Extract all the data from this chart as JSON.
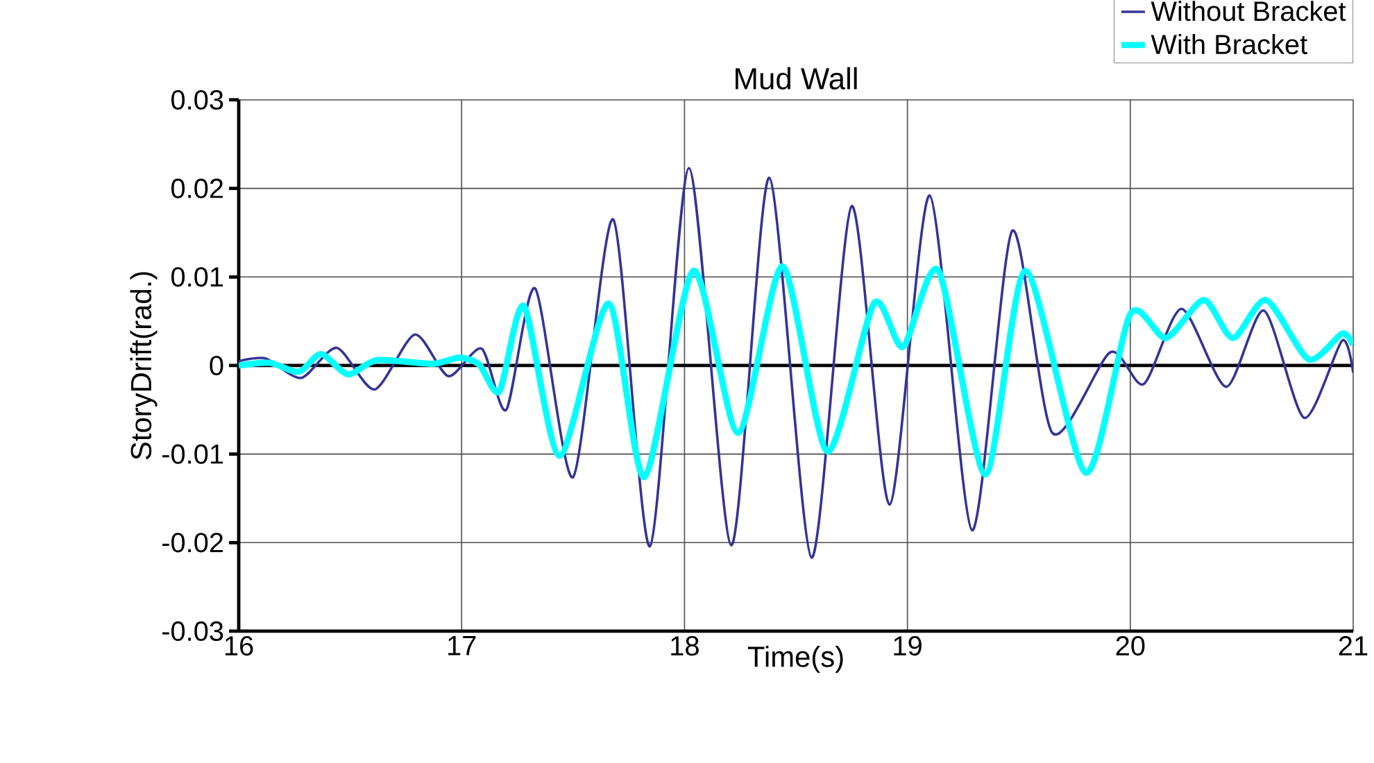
{
  "chart_data": {
    "type": "line",
    "title": "Mud Wall",
    "xlabel": "Time(s)",
    "ylabel": "StoryDrift(rad.)",
    "xlim": [
      16,
      21
    ],
    "xticks": [
      16,
      17,
      18,
      19,
      20,
      21
    ],
    "ylim": [
      -0.03,
      0.03
    ],
    "yticks": [
      -0.03,
      -0.02,
      -0.01,
      0,
      0.01,
      0.02,
      0.03
    ],
    "grid": true,
    "legend": "top right",
    "marker": "none",
    "line_style": "solid",
    "ref_lines": [
      {
        "axis": "y",
        "value": 0,
        "color": "#000000"
      }
    ],
    "series": [
      {
        "name": "Without Bracket",
        "color": "#333399",
        "x": [
          16,
          16.12,
          16.28,
          16.44,
          16.61,
          16.79,
          16.94,
          17.09,
          17.2,
          17.33,
          17.5,
          17.68,
          17.845,
          18.02,
          18.21,
          18.38,
          18.57,
          18.75,
          18.92,
          19.1,
          19.29,
          19.47,
          19.65,
          19.91,
          20.06,
          20.23,
          20.43,
          20.6,
          20.78,
          20.95,
          21
        ],
        "values": [
          0.0005,
          0.0008,
          -0.0014,
          0.002,
          -0.0027,
          0.0035,
          -0.0012,
          0.0019,
          -0.005,
          0.0087,
          -0.0126,
          0.0165,
          -0.0204,
          0.0223,
          -0.0203,
          0.0212,
          -0.0217,
          0.018,
          -0.0157,
          0.0192,
          -0.0186,
          0.0152,
          -0.0076,
          0.0015,
          -0.0021,
          0.0064,
          -0.0024,
          0.0062,
          -0.0059,
          0.0028,
          -0.0008
        ]
      },
      {
        "name": "With Bracket",
        "color": "#00ffff",
        "x": [
          16,
          16.14,
          16.27,
          16.37,
          16.49,
          16.62,
          16.87,
          16.99,
          17.08,
          17.17,
          17.28,
          17.44,
          17.66,
          17.82,
          18.04,
          18.24,
          18.44,
          18.64,
          18.85,
          18.98,
          19.14,
          19.35,
          19.53,
          19.8,
          20,
          20.16,
          20.33,
          20.46,
          20.61,
          20.8,
          20.95,
          21
        ],
        "values": [
          0,
          0.0003,
          -0.0007,
          0.0013,
          -0.001,
          0.0006,
          0.0002,
          0.0009,
          0.0001,
          -0.0029,
          0.0067,
          -0.0102,
          0.007,
          -0.0126,
          0.0107,
          -0.0076,
          0.0112,
          -0.0097,
          0.007,
          0.0021,
          0.0107,
          -0.0123,
          0.0107,
          -0.0121,
          0.0058,
          0.0031,
          0.0074,
          0.0031,
          0.0074,
          0.0007,
          0.0036,
          0.0023
        ]
      }
    ]
  }
}
